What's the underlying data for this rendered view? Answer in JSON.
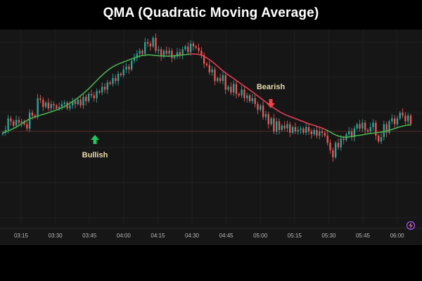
{
  "title": "QMA (Quadratic Moving Average)",
  "chart_data": {
    "type": "candlestick",
    "title": "QMA (Quadratic Moving Average)",
    "x_tick_labels": [
      "03:15",
      "03:30",
      "03:45",
      "04:00",
      "04:15",
      "04:30",
      "04:45",
      "05:00",
      "05:15",
      "05:30",
      "05:45",
      "06:00"
    ],
    "y_range": [
      0,
      100
    ],
    "y_scale_note": "no y-axis labels visible; relative price units",
    "reference_level": 40,
    "colors": {
      "up_candle": "#26a69a",
      "down_candle": "#ef5350",
      "ma_bullish": "#4caf50",
      "ma_bearish": "#e53e55",
      "reference_line": "#5a2a2a",
      "bullish_text": "#e8d9a8",
      "bearish_text": "#e8d9a8",
      "bullish_arrow": "#22c55e",
      "bearish_arrow": "#ef4444"
    },
    "candles_close": [
      38,
      40,
      48,
      46,
      43,
      47,
      45,
      46,
      44,
      41,
      52,
      50,
      49,
      62,
      61,
      56,
      59,
      55,
      58,
      57,
      55,
      56,
      58,
      59,
      55,
      57,
      60,
      58,
      61,
      57,
      63,
      60,
      65,
      64,
      62,
      67,
      66,
      70,
      68,
      73,
      72,
      76,
      74,
      79,
      78,
      82,
      84,
      82,
      88,
      90,
      93,
      95,
      93,
      101,
      100,
      98,
      104,
      95,
      96,
      91,
      95,
      93,
      95,
      90,
      91,
      94,
      92,
      96,
      98,
      94,
      100,
      98,
      97,
      95,
      92,
      86,
      85,
      80,
      82,
      74,
      76,
      74,
      78,
      68,
      70,
      66,
      72,
      65,
      64,
      68,
      62,
      64,
      60,
      62,
      58,
      54,
      57,
      49,
      51,
      44,
      48,
      39,
      46,
      40,
      43,
      41,
      44,
      38,
      42,
      39,
      40,
      41,
      38,
      42,
      39,
      37,
      40,
      36,
      39,
      38,
      36,
      31,
      26,
      21,
      31,
      28,
      34,
      33,
      37,
      39,
      35,
      41,
      44,
      41,
      45,
      40,
      39,
      42,
      45,
      36,
      32,
      35,
      44,
      38,
      46,
      48,
      44,
      48,
      52,
      50,
      46,
      50,
      44
    ],
    "qma_line": [
      38,
      38.7,
      39.4,
      40.1,
      41,
      42,
      43,
      44.2,
      45.4,
      46.6,
      47.6,
      48.4,
      49,
      49.6,
      50.2,
      50.8,
      51.3,
      51.9,
      52.5,
      53.1,
      53.8,
      54.5,
      55.3,
      56.2,
      57.2,
      58.3,
      59.5,
      60.7,
      62,
      63.5,
      65,
      66.6,
      68.3,
      70.1,
      72,
      73.9,
      75.8,
      77.6,
      79.3,
      80.9,
      82.3,
      83.5,
      84.6,
      85.5,
      86.3,
      87,
      87.7,
      88.4,
      89.1,
      89.8,
      90.5,
      91.1,
      91.6,
      91.9,
      92.1,
      92.1,
      92,
      91.8,
      91.6,
      91.4,
      91.3,
      91.2,
      91.2,
      91.3,
      91.4,
      91.6,
      91.8,
      92,
      92.2,
      92.4,
      92.6,
      92.8,
      92.8,
      92.6,
      92.2,
      91.5,
      90.6,
      89.5,
      88.2,
      86.7,
      85.1,
      83.5,
      81.9,
      80.4,
      79,
      77.7,
      76.4,
      75.1,
      73.8,
      72.5,
      71.2,
      69.9,
      68.6,
      67.3,
      65.9,
      64.5,
      63.1,
      61.7,
      60.3,
      58.9,
      57.5,
      56.1,
      54.8,
      53.6,
      52.5,
      51.5,
      50.6,
      49.8,
      49.1,
      48.4,
      47.7,
      47,
      46.3,
      45.6,
      44.9,
      44.2,
      43.6,
      43,
      42.4,
      41.8,
      41.1,
      40.3,
      39.4,
      38.4,
      37.3,
      36.4,
      35.7,
      35.2,
      35,
      35,
      35.2,
      35.5,
      35.8,
      36.1,
      36.4,
      36.7,
      37,
      37.3,
      37.6,
      37.8,
      38,
      38.3,
      38.6,
      38.9,
      39.3,
      39.8,
      40.4,
      41,
      41.6,
      42.2,
      42.7,
      43.1,
      43.4,
      43.5
    ],
    "trend_flip_index": 70,
    "annotations": [
      {
        "text": "Bullish",
        "direction": "up"
      },
      {
        "text": "Bearish",
        "direction": "down"
      }
    ]
  }
}
